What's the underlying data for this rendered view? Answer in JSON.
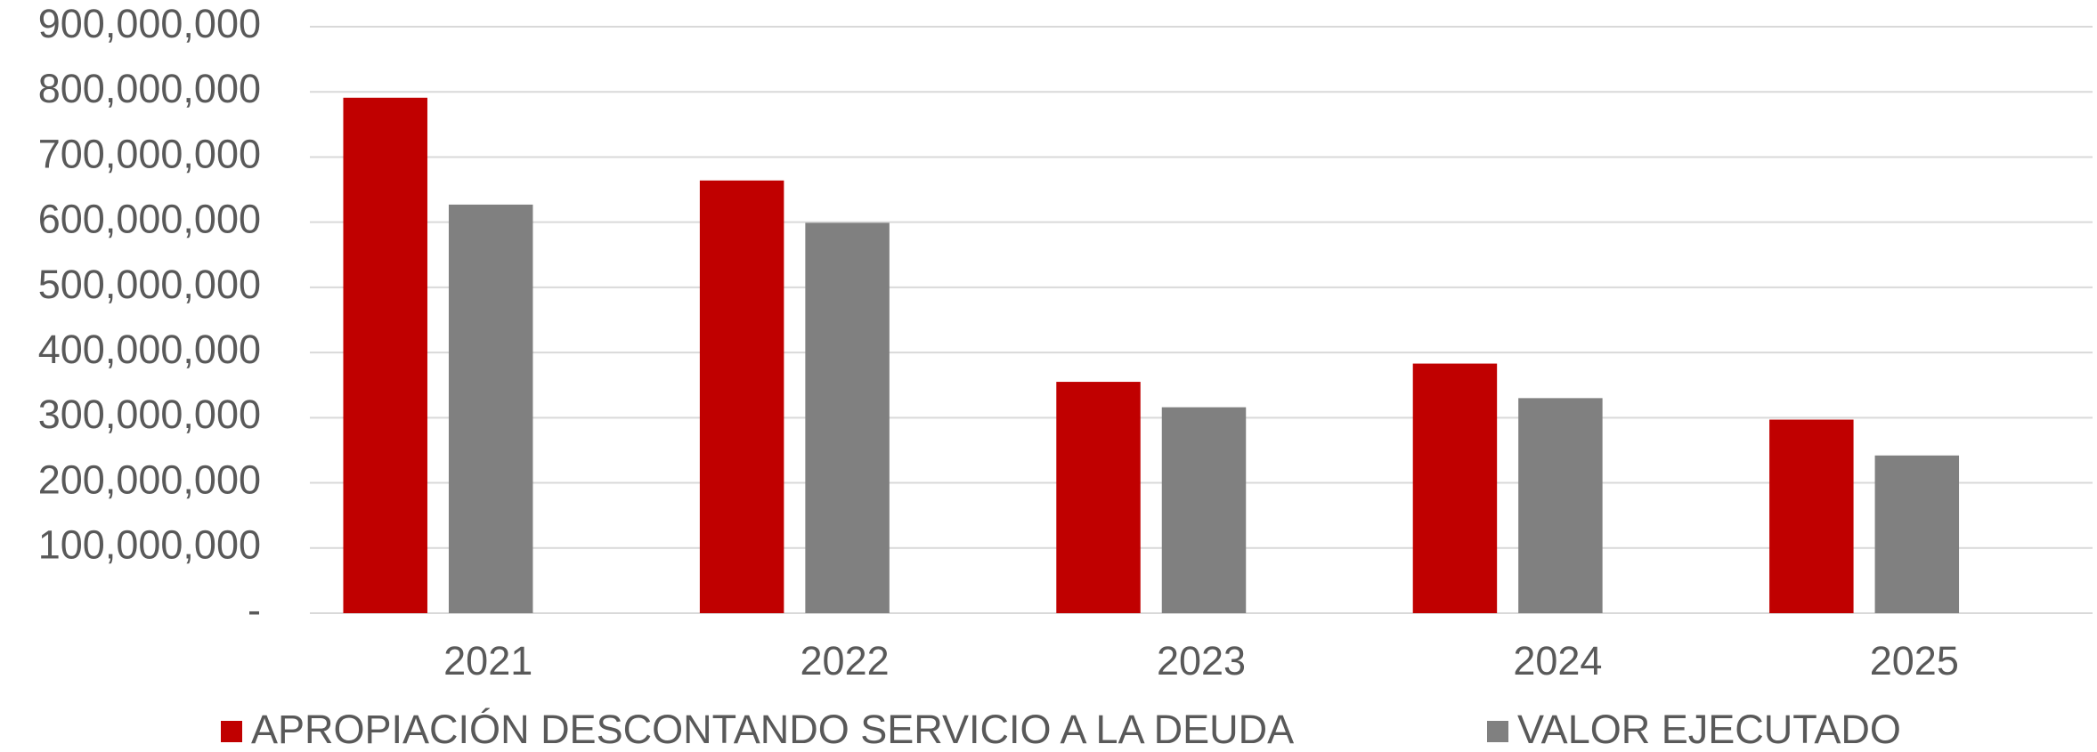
{
  "chart_data": {
    "type": "bar",
    "categories": [
      "2021",
      "2022",
      "2023",
      "2024",
      "2025"
    ],
    "series": [
      {
        "name": "APROPIACIÓN DESCONTANDO SERVICIO A LA DEUDA",
        "color": "#c00000",
        "values": [
          791000000,
          664000000,
          355000000,
          383000000,
          297000000
        ]
      },
      {
        "name": "VALOR EJECUTADO",
        "color": "#808080",
        "values": [
          627000000,
          599000000,
          316000000,
          330000000,
          242000000
        ]
      }
    ],
    "ylim": [
      0,
      900000000
    ],
    "yticks": [
      {
        "value": 0,
        "label": "-"
      },
      {
        "value": 100000000,
        "label": "100,000,000"
      },
      {
        "value": 200000000,
        "label": "200,000,000"
      },
      {
        "value": 300000000,
        "label": "300,000,000"
      },
      {
        "value": 400000000,
        "label": "400,000,000"
      },
      {
        "value": 500000000,
        "label": "500,000,000"
      },
      {
        "value": 600000000,
        "label": "600,000,000"
      },
      {
        "value": 700000000,
        "label": "700,000,000"
      },
      {
        "value": 800000000,
        "label": "800,000,000"
      },
      {
        "value": 900000000,
        "label": "900,000,000"
      }
    ],
    "grid": true
  }
}
